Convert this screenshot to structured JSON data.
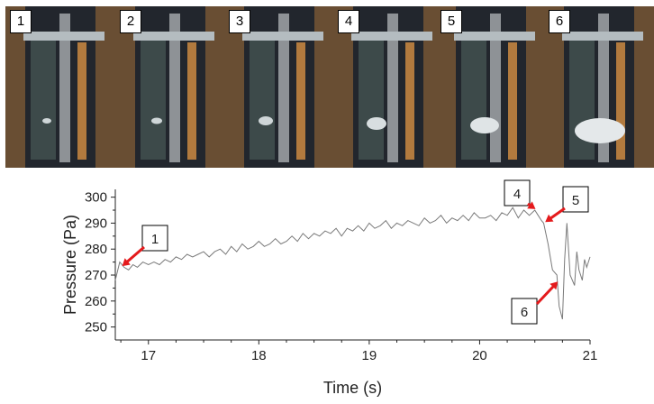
{
  "frames": {
    "labels": [
      "1",
      "2",
      "3",
      "4",
      "5",
      "6"
    ],
    "colors": {
      "dark": "#1e2129",
      "amber": "#a8743c",
      "glass": "#9aa3a8"
    }
  },
  "chart_data": {
    "type": "line",
    "xlabel": "Time (s)",
    "ylabel": "Pressure (Pa)",
    "xlim": [
      16.7,
      21.0
    ],
    "ylim": [
      245,
      303
    ],
    "xticks": [
      17,
      18,
      19,
      20,
      21
    ],
    "yticks": [
      250,
      260,
      270,
      280,
      290,
      300
    ],
    "grid": false,
    "line_color": "#7a7a7a",
    "series": [
      {
        "x": [
          16.7,
          16.74,
          16.78,
          16.82,
          16.86,
          16.9,
          16.95,
          17.0,
          17.05,
          17.1,
          17.15,
          17.2,
          17.25,
          17.3,
          17.35,
          17.4,
          17.45,
          17.5,
          17.55,
          17.6,
          17.65,
          17.7,
          17.75,
          17.8,
          17.85,
          17.9,
          17.95,
          18.0,
          18.05,
          18.1,
          18.15,
          18.2,
          18.25,
          18.3,
          18.35,
          18.4,
          18.45,
          18.5,
          18.55,
          18.6,
          18.65,
          18.7,
          18.75,
          18.8,
          18.85,
          18.9,
          18.95,
          19.0,
          19.05,
          19.1,
          19.15,
          19.2,
          19.25,
          19.3,
          19.35,
          19.4,
          19.45,
          19.5,
          19.55,
          19.6,
          19.65,
          19.7,
          19.75,
          19.8,
          19.85,
          19.9,
          19.95,
          20.0,
          20.05,
          20.1,
          20.15,
          20.2,
          20.25,
          20.3,
          20.35,
          20.4,
          20.45,
          20.5,
          20.53,
          20.56,
          20.58,
          20.62,
          20.66,
          20.7,
          20.72,
          20.75,
          20.77,
          20.79,
          20.82,
          20.86,
          20.88,
          20.9,
          20.93,
          20.95,
          20.97,
          21.0
        ],
        "y": [
          268,
          275,
          273,
          272,
          274,
          273,
          275,
          274,
          275,
          274,
          276,
          275,
          277,
          276,
          278,
          277,
          278,
          279,
          277,
          279,
          280,
          278,
          281,
          279,
          282,
          280,
          281,
          283,
          281,
          282,
          284,
          282,
          283,
          285,
          283,
          286,
          284,
          286,
          285,
          287,
          286,
          288,
          285,
          288,
          287,
          289,
          287,
          290,
          288,
          289,
          291,
          288,
          290,
          289,
          291,
          290,
          289,
          292,
          290,
          291,
          293,
          290,
          292,
          291,
          293,
          291,
          294,
          292,
          292,
          293,
          291,
          294,
          293,
          296,
          292,
          295,
          293,
          295,
          293,
          291,
          290,
          282,
          272,
          270,
          258,
          253,
          276,
          290,
          270,
          266,
          279,
          272,
          268,
          276,
          273,
          277
        ]
      }
    ],
    "annotations": [
      {
        "label": "1",
        "x": 16.75,
        "y": 273
      },
      {
        "label": "4",
        "x": 20.52,
        "y": 295
      },
      {
        "label": "5",
        "x": 20.58,
        "y": 290
      },
      {
        "label": "6",
        "x": 20.72,
        "y": 268
      }
    ]
  }
}
